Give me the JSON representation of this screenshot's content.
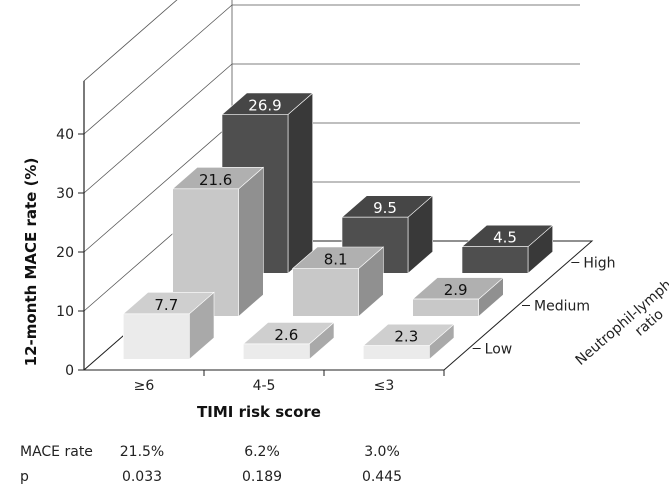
{
  "chart_data": {
    "type": "bar",
    "subtype": "3d-grouped",
    "ylabel": "12-month MACE rate (%)",
    "xlabel": "TIMI risk score",
    "zlabel": "Neutrophil-lymphocyte ratio",
    "categories": [
      "≥6",
      "4-5",
      "≤3"
    ],
    "series": [
      {
        "name": "Low",
        "values": [
          7.7,
          2.6,
          2.3
        ],
        "color": "#ebebeb"
      },
      {
        "name": "Medium",
        "values": [
          21.6,
          8.1,
          2.9
        ],
        "color": "#c8c8c8"
      },
      {
        "name": "High",
        "values": [
          26.9,
          9.5,
          4.5
        ],
        "color": "#4f4f4f"
      }
    ],
    "ylim": [
      0,
      40
    ],
    "yticks": [
      0,
      10,
      20,
      30,
      40
    ],
    "grid": true
  },
  "table": {
    "rows": [
      {
        "label": "MACE rate",
        "values": [
          "21.5%",
          "6.2%",
          "3.0%"
        ]
      },
      {
        "label": "p",
        "values": [
          "0.033",
          "0.189",
          "0.445"
        ]
      }
    ]
  }
}
